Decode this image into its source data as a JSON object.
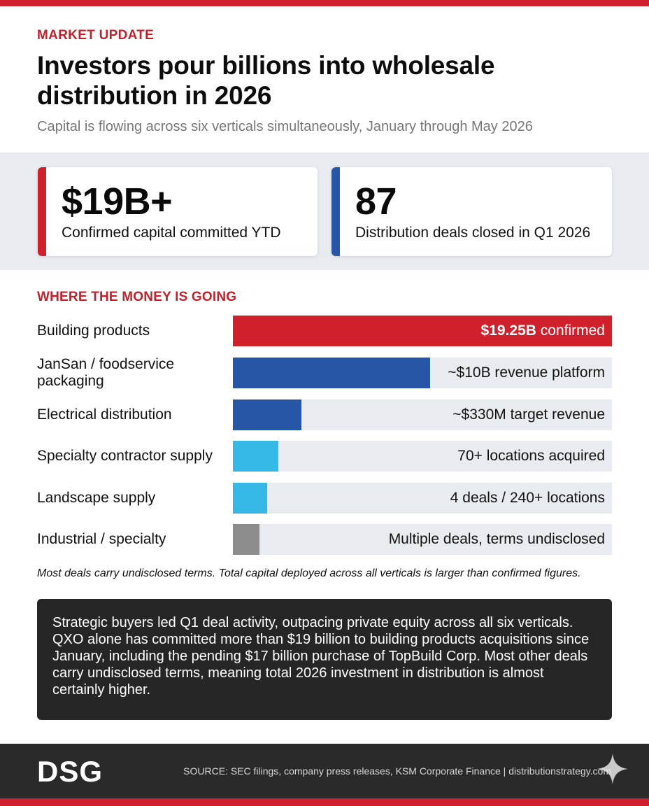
{
  "header": {
    "kicker": "MARKET UPDATE",
    "headline": "Investors pour billions into wholesale distribution in 2026",
    "subhead": "Capital is flowing across six verticals simultaneously, January through May 2026"
  },
  "stats": [
    {
      "value": "$19B+",
      "label": "Confirmed capital committed YTD",
      "accent": "#d0202c"
    },
    {
      "value": "87",
      "label": "Distribution deals closed in Q1 2026",
      "accent": "#2656a5"
    }
  ],
  "chart_data": {
    "type": "bar",
    "orientation": "horizontal",
    "title": "WHERE THE MONEY IS GOING",
    "categories": [
      "Building products",
      "JanSan / foodservice packaging",
      "Electrical distribution",
      "Specialty contractor supply",
      "Landscape supply",
      "Industrial / specialty"
    ],
    "values": [
      1.0,
      0.52,
      0.18,
      0.12,
      0.09,
      0.07
    ],
    "value_unit": "relative bar length (fraction of full track)",
    "bar_labels": [
      {
        "strong": "$19.25B",
        "rest": " confirmed"
      },
      {
        "strong": "",
        "rest": "~$10B revenue platform"
      },
      {
        "strong": "",
        "rest": "~$330M target revenue"
      },
      {
        "strong": "",
        "rest": "70+ locations acquired"
      },
      {
        "strong": "",
        "rest": "4 deals / 240+ locations"
      },
      {
        "strong": "",
        "rest": "Multiple deals, terms undisclosed"
      }
    ],
    "colors": [
      "#d0202c",
      "#2656a5",
      "#2656a5",
      "#36b8e6",
      "#36b8e6",
      "#8c8c8c"
    ],
    "grid": false,
    "legend": "none"
  },
  "footnote": "Most deals carry undisclosed terms. Total capital deployed across all verticals is larger than confirmed figures.",
  "summary": "Strategic buyers led Q1 deal activity, outpacing private equity across all six verticals. QXO alone has committed more than $19 billion to building products acquisitions since January, including the pending $17 billion purchase of TopBuild Corp. Most other deals carry undisclosed terms, meaning total 2026 investment in distribution is almost certainly higher.",
  "footer": {
    "logo": "DSG",
    "source": "SOURCE: SEC filings, company press releases, KSM Corporate Finance | distributionstrategy.com"
  },
  "theme": {
    "brand_red": "#d0202c",
    "brand_blue": "#2656a5",
    "light_blue": "#36b8e6",
    "gray": "#8c8c8c"
  }
}
